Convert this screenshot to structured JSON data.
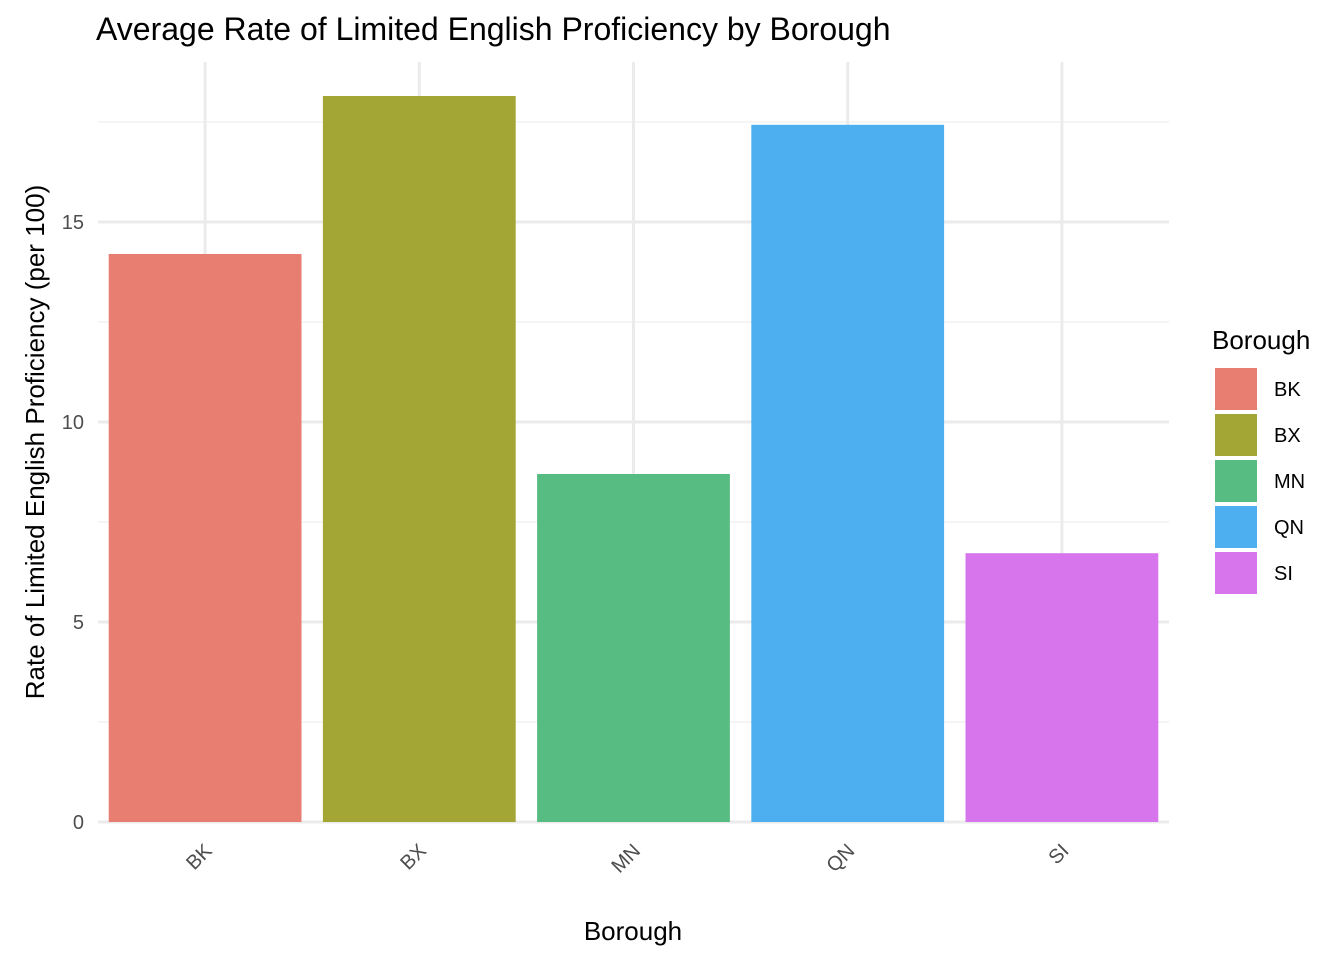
{
  "chart_data": {
    "type": "bar",
    "title": "Average Rate of Limited English Proficiency by Borough",
    "xlabel": "Borough",
    "ylabel": "Rate of Limited English Proficiency (per 100)",
    "categories": [
      "BK",
      "BX",
      "MN",
      "QN",
      "SI"
    ],
    "values": [
      14.2,
      18.15,
      8.7,
      17.43,
      6.72
    ],
    "colors": [
      "#E87D72",
      "#A3A535",
      "#56BC82",
      "#4DAFEF",
      "#D776EC"
    ],
    "ylim": [
      0,
      19.0
    ],
    "y_ticks": [
      0,
      5,
      10,
      15
    ],
    "y_tick_labels": [
      "0",
      "5",
      "10",
      "15"
    ],
    "grid": true,
    "legend": {
      "title": "Borough",
      "position": "right",
      "items": [
        "BK",
        "BX",
        "MN",
        "QN",
        "SI"
      ]
    }
  }
}
